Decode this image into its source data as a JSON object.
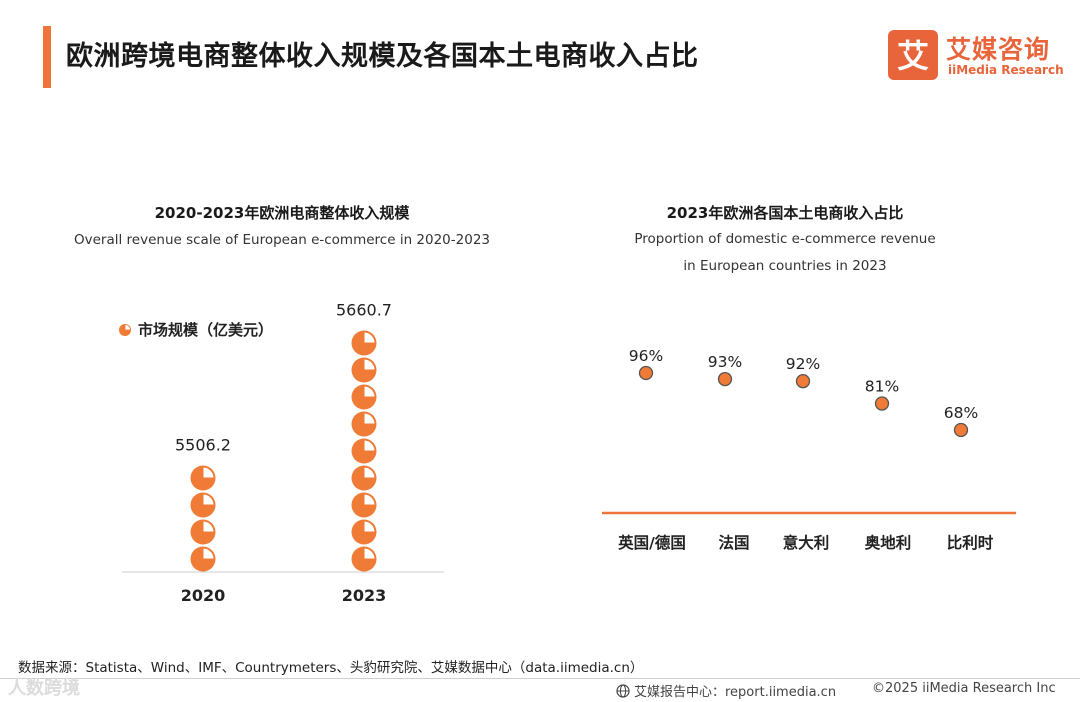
{
  "header": {
    "title": "欧洲跨境电商整体收入规模及各国本土电商收入占比",
    "logo_mark": "艾",
    "logo_cn": "艾媒咨询",
    "logo_en": "iiMedia Research"
  },
  "colors": {
    "accent": "#f0743a",
    "marker": "#ef7b36",
    "marker_stroke": "#555555",
    "axis": "#cccccc"
  },
  "chart_data": [
    {
      "type": "bar",
      "style": "pictograph",
      "title": "2020-2023年欧洲电商整体收入规模",
      "subtitle": "Overall revenue scale of European e-commerce in 2020-2023",
      "legend": [
        "市场规模（亿美元）"
      ],
      "categories": [
        "2020",
        "2023"
      ],
      "values": [
        5506.2,
        5660.7
      ],
      "value_labels": [
        "5506.2",
        "5660.7"
      ],
      "icon_counts": [
        4,
        9
      ],
      "unit": "亿美元"
    },
    {
      "type": "scatter",
      "title": "2023年欧洲各国本土电商收入占比",
      "subtitle_lines": [
        "Proportion of domestic e-commerce revenue",
        "in European countries in 2023"
      ],
      "categories": [
        "英国/德国",
        "法国",
        "意大利",
        "奥地利",
        "比利时"
      ],
      "values": [
        96,
        93,
        92,
        81,
        68
      ],
      "value_labels": [
        "96%",
        "93%",
        "92%",
        "81%",
        "68%"
      ],
      "unit": "%"
    }
  ],
  "footer": {
    "source": "数据来源：Statista、Wind、IMF、Countrymeters、头豹研究院、艾媒数据中心（data.iimedia.cn）",
    "watermark": "人数跨境",
    "report_site": "艾媒报告中心：report.iimedia.cn",
    "copyright": "©2025  iiMedia Research  Inc"
  }
}
